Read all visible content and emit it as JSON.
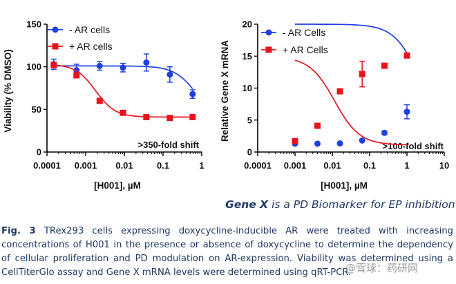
{
  "chart_data": [
    {
      "type": "scatter",
      "ylabel": "Viability (% DMSO)",
      "xlabel": "[H001], µM",
      "xscale": "log",
      "xlim": [
        0.0001,
        1
      ],
      "ylim": [
        0,
        150
      ],
      "x_ticks": [
        "0.0001",
        "0.001",
        "0.01",
        "0.1",
        "1"
      ],
      "x_tick_values": [
        0.0001,
        0.001,
        0.01,
        0.1,
        1
      ],
      "y_ticks": [
        "0",
        "50",
        "100",
        "150"
      ],
      "y_tick_values": [
        0,
        50,
        100,
        150
      ],
      "annotation": ">350-fold shift",
      "legend_position": "top-left",
      "series": [
        {
          "name": "-  AR cells",
          "color": "#1f3fe0",
          "marker": "circle",
          "x": [
            0.00015,
            0.00058,
            0.0023,
            0.0092,
            0.037,
            0.15,
            0.58
          ],
          "y": [
            103,
            96,
            101,
            99,
            105,
            91,
            68
          ],
          "err": [
            6,
            7,
            5,
            5,
            10,
            9,
            5
          ],
          "fit": {
            "top": 101,
            "bottom": 35,
            "ec50": 0.75,
            "hill": 1.5
          }
        },
        {
          "name": "+ AR cells",
          "color": "#e8141c",
          "marker": "square",
          "x": [
            0.00015,
            0.00058,
            0.0023,
            0.0092,
            0.037,
            0.15,
            0.58
          ],
          "y": [
            102,
            90,
            60,
            46,
            41,
            40,
            41
          ],
          "err": [
            3,
            3,
            0,
            0,
            0,
            0,
            0
          ],
          "fit": {
            "top": 103,
            "bottom": 41,
            "ec50": 0.0018,
            "hill": 1.7
          }
        }
      ]
    },
    {
      "type": "scatter",
      "ylabel": "Relative Gene X mRNA",
      "xlabel": "[H001], µM",
      "xscale": "log",
      "xlim": [
        0.0001,
        10
      ],
      "ylim": [
        0,
        20
      ],
      "x_ticks": [
        "0.0001",
        "0.001",
        "0.01",
        "0.1",
        "1",
        "10"
      ],
      "x_tick_values": [
        0.0001,
        0.001,
        0.01,
        0.1,
        1,
        10
      ],
      "y_ticks": [
        "0",
        "5",
        "10",
        "15",
        "20"
      ],
      "y_tick_values": [
        0,
        5,
        10,
        15,
        20
      ],
      "annotation": ">100-fold shift",
      "legend_position": "top-left",
      "series": [
        {
          "name": "-  AR Cells",
          "color": "#1f3fe0",
          "marker": "circle",
          "x": [
            0.001,
            0.004,
            0.016,
            0.063,
            0.25,
            1
          ],
          "y": [
            1.3,
            1.3,
            1.35,
            1.8,
            3.0,
            6.3
          ],
          "err": [
            0,
            0,
            0,
            0,
            0.3,
            1.1
          ],
          "fit": {
            "top": 20,
            "bottom": 1.25,
            "ec50": 2.5,
            "hill": 1.25
          }
        },
        {
          "name": "+ AR Cells",
          "color": "#e8141c",
          "marker": "square",
          "x": [
            0.001,
            0.004,
            0.016,
            0.063,
            0.25,
            1
          ],
          "y": [
            1.7,
            4.1,
            9.5,
            12.2,
            13.5,
            15.1
          ],
          "err": [
            0,
            0,
            0,
            2.0,
            0.3,
            0
          ],
          "fit": {
            "top": 14.9,
            "bottom": 1.1,
            "ec50": 0.0115,
            "hill": 1.3
          }
        }
      ]
    }
  ],
  "subtitle": {
    "gene": "Gene X",
    "rest": " is a PD Biomarker for EP inhibition"
  },
  "caption": {
    "label": "Fig. 3",
    "text": " TRex293 cells expressing doxycycline-inducible AR were treated with increasing concentrations of H001 in the presence or absence of doxycycline to determine the dependency of cellular proliferation and PD modulation on AR-expression. Viability was determined using a CellTiterGlo assay and Gene X mRNA levels were determined using qRT-PCR."
  },
  "watermark": "@雪球：药研网"
}
